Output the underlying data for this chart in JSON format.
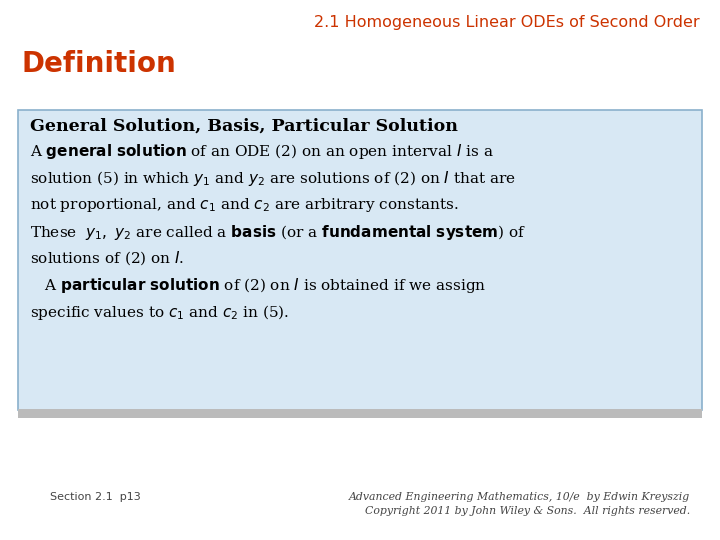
{
  "title": "2.1 Homogeneous Linear ODEs of Second Order",
  "title_color": "#CC3300",
  "title_fontsize": 11.5,
  "definition_label": "Definition",
  "definition_color": "#CC3300",
  "definition_fontsize": 20,
  "box_bg_color": "#D8E8F4",
  "box_border_color": "#8AB0CC",
  "box_title": "General Solution, Basis, Particular Solution",
  "footer_left": "Section 2.1  p13",
  "footer_right_line1": "Advanced Engineering Mathematics, 10/e  by Edwin Kreyszig",
  "footer_right_line2": "Copyright 2011 by John Wiley & Sons.  All rights reserved.",
  "bg_color": "#FFFFFF",
  "bottom_bar_color": "#BBBBBB"
}
